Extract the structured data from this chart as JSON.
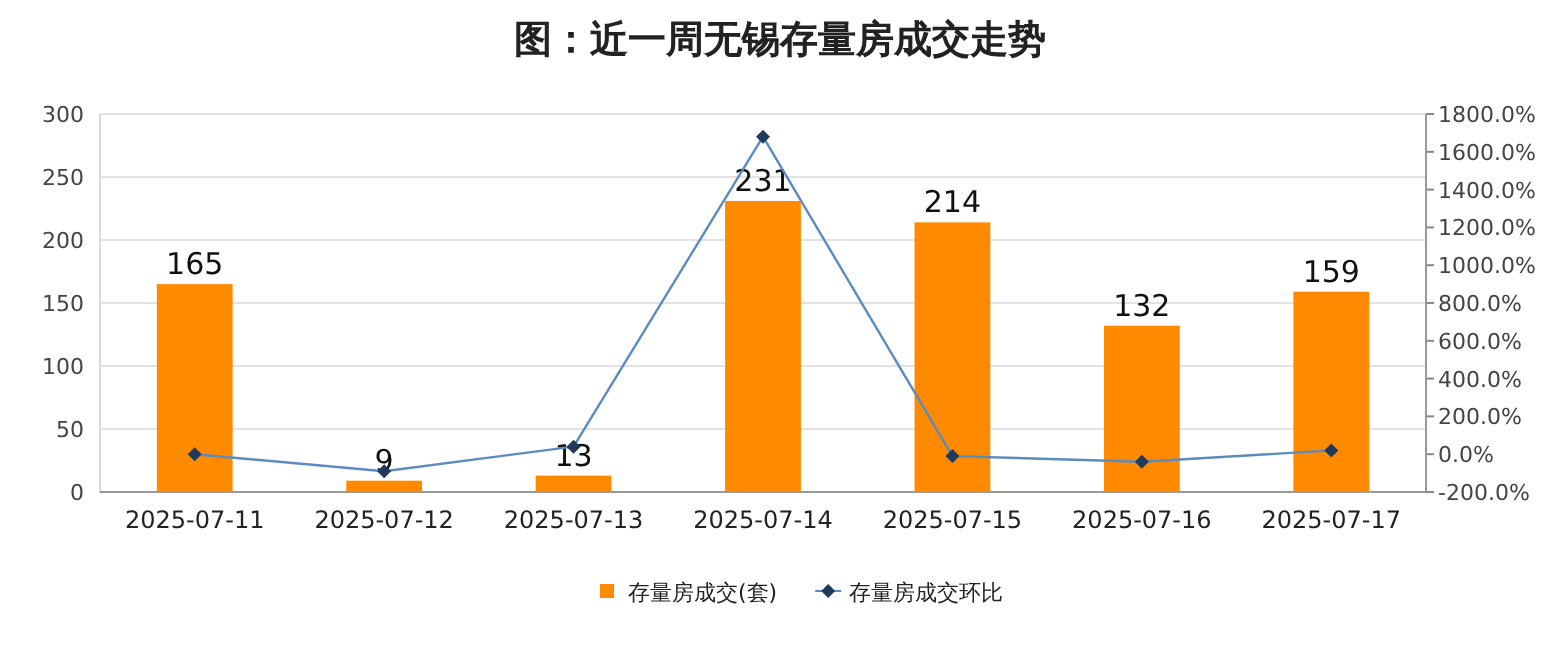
{
  "chart_data": {
    "type": "bar",
    "title": "图：近一周无锡存量房成交走势",
    "categories": [
      "2025-07-11",
      "2025-07-12",
      "2025-07-13",
      "2025-07-14",
      "2025-07-15",
      "2025-07-16",
      "2025-07-17"
    ],
    "series": [
      {
        "name": "存量房成交(套)",
        "color": "#ff8a00",
        "values": [
          165,
          9,
          13,
          231,
          214,
          132,
          159
        ],
        "value_labels": [
          "165",
          "9",
          "13",
          "231",
          "214",
          "132",
          "159"
        ]
      },
      {
        "name": "存量房成交环比",
        "type": "line",
        "axis": "y2",
        "color": "#5b8bc0",
        "marker": "diamond",
        "values": [
          0,
          -90,
          40,
          1680,
          -10,
          -40,
          20
        ]
      }
    ],
    "ylim": [
      0,
      300
    ],
    "yticks": [
      0,
      50,
      100,
      150,
      200,
      250,
      300
    ],
    "y2lim": [
      -200,
      1800
    ],
    "y2ticks": [
      {
        "value": -200,
        "label": "-200.0%"
      },
      {
        "value": 0,
        "label": "0.0%"
      },
      {
        "value": 200,
        "label": "200.0%"
      },
      {
        "value": 400,
        "label": "400.0%"
      },
      {
        "value": 600,
        "label": "600.0%"
      },
      {
        "value": 800,
        "label": "800.0%"
      },
      {
        "value": 1000,
        "label": "1000.0%"
      },
      {
        "value": 1200,
        "label": "1200.0%"
      },
      {
        "value": 1400,
        "label": "1400.0%"
      },
      {
        "value": 1600,
        "label": "1600.0%"
      },
      {
        "value": 1800,
        "label": "1800.0%"
      }
    ],
    "grid": "y",
    "legend": "bottom"
  }
}
